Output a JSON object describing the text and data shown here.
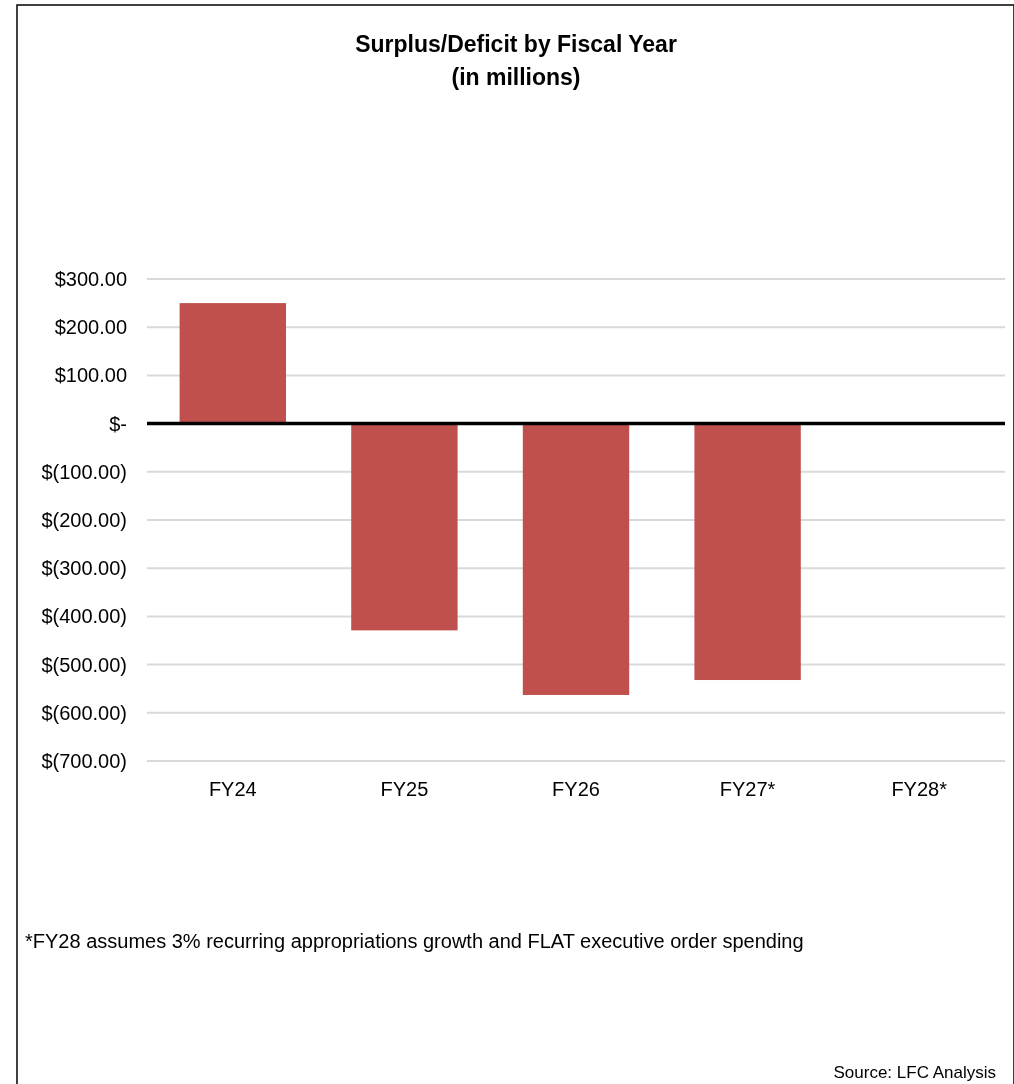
{
  "chart_data": {
    "type": "bar",
    "title": "Surplus/Deficit by Fiscal Year",
    "subtitle": "(in millions)",
    "categories": [
      "FY24",
      "FY25",
      "FY26",
      "FY27*",
      "FY28*"
    ],
    "values": [
      250,
      -429,
      -563,
      -532,
      null
    ],
    "color": "#c0504d",
    "ylim": [
      -700,
      300
    ],
    "yticks": [
      {
        "value": -700,
        "label": "$(700.00)"
      },
      {
        "value": -600,
        "label": "$(600.00)"
      },
      {
        "value": -500,
        "label": "$(500.00)"
      },
      {
        "value": -400,
        "label": "$(400.00)"
      },
      {
        "value": -300,
        "label": "$(300.00)"
      },
      {
        "value": -200,
        "label": "$(200.00)"
      },
      {
        "value": -100,
        "label": "$(100.00)"
      },
      {
        "value": 0,
        "label": "$-"
      },
      {
        "value": 100,
        "label": "$100.00"
      },
      {
        "value": 200,
        "label": "$200.00"
      },
      {
        "value": 300,
        "label": "$300.00"
      }
    ],
    "grid": "y",
    "annotations": [
      "*FY28 assumes 3% recurring appropriations growth and FLAT executive order spending",
      "Source: LFC Analysis"
    ]
  }
}
